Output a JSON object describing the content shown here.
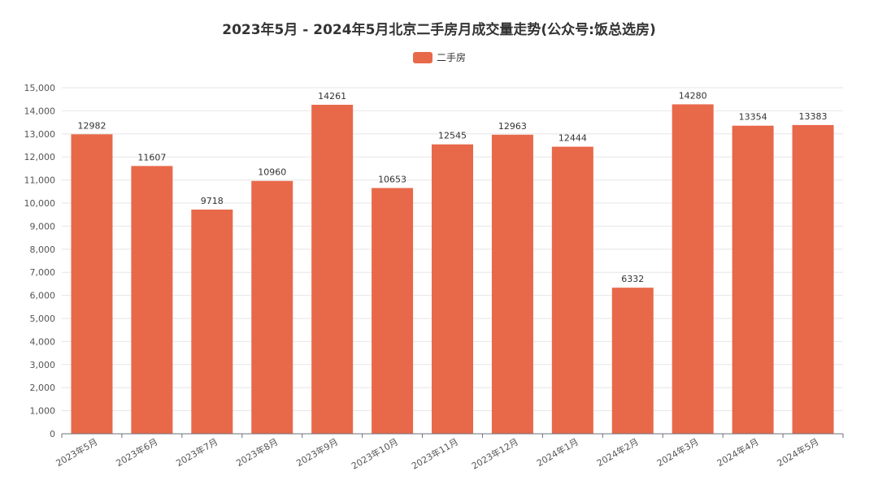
{
  "chart_data": {
    "type": "bar",
    "title": "2023年5月 - 2024年5月北京二手房月成交量走势(公众号:饭总选房)",
    "xlabel": "",
    "ylabel": "",
    "legend": {
      "position": "top-center"
    },
    "grid": true,
    "ylim": [
      0,
      15000
    ],
    "yticks": [
      "0",
      "1,000",
      "2,000",
      "3,000",
      "4,000",
      "5,000",
      "6,000",
      "7,000",
      "8,000",
      "9,000",
      "10,000",
      "11,000",
      "12,000",
      "13,000",
      "14,000",
      "15,000"
    ],
    "categories": [
      "2023年5月",
      "2023年6月",
      "2023年7月",
      "2023年8月",
      "2023年9月",
      "2023年10月",
      "2023年11月",
      "2023年12月",
      "2024年1月",
      "2024年2月",
      "2024年3月",
      "2024年4月",
      "2024年5月"
    ],
    "series": [
      {
        "name": "二手房",
        "color": "#e8694a",
        "values": [
          12982,
          11607,
          9718,
          10960,
          14261,
          10653,
          12545,
          12963,
          12444,
          6332,
          14280,
          13354,
          13383
        ]
      }
    ]
  }
}
